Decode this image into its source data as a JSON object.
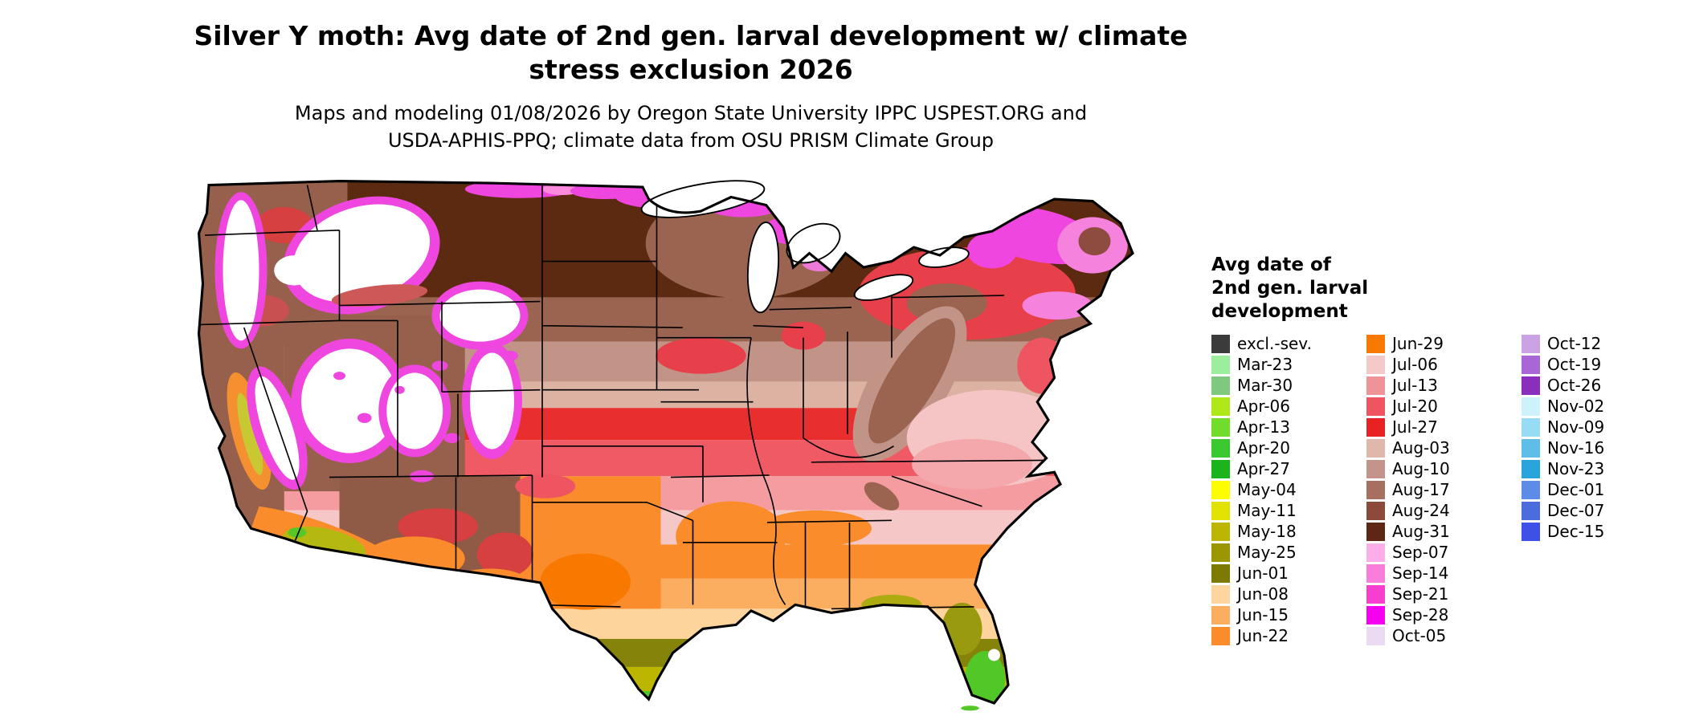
{
  "header": {
    "title_line1": "Silver Y moth: Avg date of 2nd gen. larval development w/ climate",
    "title_line2": "stress exclusion 2026",
    "subtitle_line1": "Maps and modeling 01/08/2026 by Oregon State University IPPC USPEST.ORG and",
    "subtitle_line2": "USDA-APHIS-PPQ; climate data from OSU PRISM Climate Group"
  },
  "legend": {
    "title_lines": [
      "Avg date of",
      "2nd gen. larval",
      "development"
    ],
    "columns": [
      {
        "items": [
          {
            "label": "excl.-sev.",
            "color": "#3B3B3B"
          },
          {
            "label": "Mar-23",
            "color": "#9BEE9B"
          },
          {
            "label": "Mar-30",
            "color": "#7FC87F"
          },
          {
            "label": "Apr-06",
            "color": "#AEE818"
          },
          {
            "label": "Apr-13",
            "color": "#72DC2A"
          },
          {
            "label": "Apr-20",
            "color": "#3BC831"
          },
          {
            "label": "Apr-27",
            "color": "#1CB41C"
          },
          {
            "label": "May-04",
            "color": "#FDFD00"
          },
          {
            "label": "May-11",
            "color": "#E2E200"
          },
          {
            "label": "May-18",
            "color": "#BDB600"
          },
          {
            "label": "May-25",
            "color": "#9C9600"
          },
          {
            "label": "Jun-01",
            "color": "#7D7A00"
          },
          {
            "label": "Jun-08",
            "color": "#FCD69E"
          },
          {
            "label": "Jun-15",
            "color": "#FBAD60"
          },
          {
            "label": "Jun-22",
            "color": "#FA8C2C"
          }
        ]
      },
      {
        "items": [
          {
            "label": "Jun-29",
            "color": "#F87800"
          },
          {
            "label": "Jul-06",
            "color": "#F6C9C9"
          },
          {
            "label": "Jul-13",
            "color": "#F09399"
          },
          {
            "label": "Jul-20",
            "color": "#EF5560"
          },
          {
            "label": "Jul-27",
            "color": "#E82222"
          },
          {
            "label": "Aug-03",
            "color": "#DFB7AB"
          },
          {
            "label": "Aug-10",
            "color": "#C4948A"
          },
          {
            "label": "Aug-17",
            "color": "#A76F60"
          },
          {
            "label": "Aug-24",
            "color": "#8C4A3C"
          },
          {
            "label": "Aug-31",
            "color": "#5E2614"
          },
          {
            "label": "Sep-07",
            "color": "#FBAEE8"
          },
          {
            "label": "Sep-14",
            "color": "#F97EDC"
          },
          {
            "label": "Sep-21",
            "color": "#F73ECE"
          },
          {
            "label": "Sep-28",
            "color": "#F400EE"
          },
          {
            "label": "Oct-05",
            "color": "#EADAF2"
          }
        ]
      },
      {
        "items": [
          {
            "label": "Oct-12",
            "color": "#CBA2E4"
          },
          {
            "label": "Oct-19",
            "color": "#A966D6"
          },
          {
            "label": "Oct-26",
            "color": "#8A2EBE"
          },
          {
            "label": "Nov-02",
            "color": "#CEF2FC"
          },
          {
            "label": "Nov-09",
            "color": "#97DBF4"
          },
          {
            "label": "Nov-16",
            "color": "#5FBDE9"
          },
          {
            "label": "Nov-23",
            "color": "#2AA5DC"
          },
          {
            "label": "Dec-01",
            "color": "#5C8CE8"
          },
          {
            "label": "Dec-07",
            "color": "#4A6CDC"
          },
          {
            "label": "Dec-15",
            "color": "#3D51E8"
          }
        ]
      }
    ]
  }
}
